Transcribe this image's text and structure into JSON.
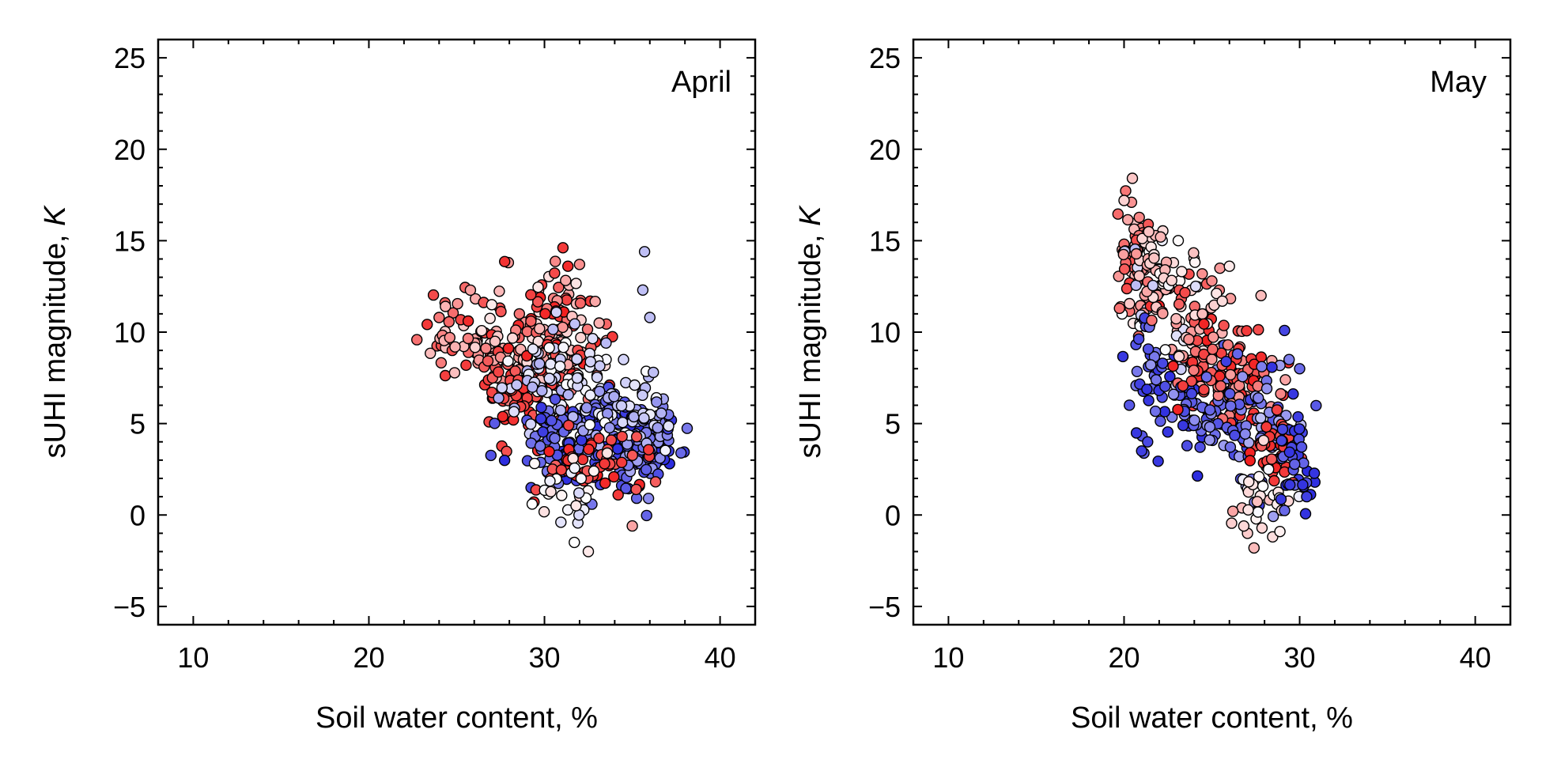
{
  "chart_data": [
    {
      "type": "scatter",
      "panel_label": "April",
      "xlabel": "Soil water content, %",
      "ylabel_main": "sUHI magnitude, ",
      "ylabel_italic": "K",
      "xlim": [
        8,
        42
      ],
      "ylim": [
        -6,
        26
      ],
      "xticks": [
        10,
        20,
        30,
        40
      ],
      "yticks": [
        -5,
        0,
        5,
        10,
        15,
        20,
        25
      ],
      "ytick_labels": [
        "−5",
        "0",
        "5",
        "10",
        "15",
        "20",
        "25"
      ],
      "grid": false,
      "colormap": [
        "#2b2bdf",
        "#ffffff",
        "#f21f1f"
      ],
      "clusters": [
        {
          "cx": 25.0,
          "cy": 9.5,
          "sx": 1.0,
          "sy": 1.2,
          "n": 40,
          "c": [
            0.6,
            0.95
          ]
        },
        {
          "cx": 27.5,
          "cy": 8.5,
          "sx": 1.3,
          "sy": 1.5,
          "n": 70,
          "c": [
            0.55,
            1.0
          ]
        },
        {
          "cx": 30.5,
          "cy": 9.5,
          "sx": 1.5,
          "sy": 2.0,
          "n": 130,
          "c": [
            0.55,
            1.0
          ]
        },
        {
          "cx": 29.0,
          "cy": 6.5,
          "sx": 1.4,
          "sy": 1.3,
          "n": 60,
          "c": [
            0.85,
            1.0
          ]
        },
        {
          "cx": 31.0,
          "cy": 7.0,
          "sx": 1.6,
          "sy": 1.6,
          "n": 80,
          "c": [
            0.3,
            0.5
          ]
        },
        {
          "cx": 32.0,
          "cy": 4.0,
          "sx": 2.0,
          "sy": 1.4,
          "n": 120,
          "c": [
            0.0,
            0.2
          ]
        },
        {
          "cx": 35.5,
          "cy": 4.0,
          "sx": 1.2,
          "sy": 1.2,
          "n": 110,
          "c": [
            0.0,
            0.3
          ]
        },
        {
          "cx": 34.0,
          "cy": 5.5,
          "sx": 1.5,
          "sy": 1.2,
          "n": 60,
          "c": [
            0.25,
            0.5
          ]
        },
        {
          "cx": 33.0,
          "cy": 3.0,
          "sx": 1.5,
          "sy": 1.0,
          "n": 50,
          "c": [
            0.85,
            1.0
          ]
        },
        {
          "cx": 31.5,
          "cy": 1.5,
          "sx": 1.0,
          "sy": 1.2,
          "n": 25,
          "c": [
            0.4,
            0.6
          ]
        }
      ],
      "extra_points": [
        [
          35.7,
          14.4,
          0.35
        ],
        [
          35.6,
          12.3,
          0.35
        ],
        [
          36.0,
          10.8,
          0.35
        ],
        [
          32.5,
          -2.0,
          0.55
        ],
        [
          31.7,
          -1.5,
          0.5
        ],
        [
          35.0,
          -0.6,
          0.7
        ],
        [
          32.0,
          13.7,
          0.75
        ],
        [
          27.0,
          11.5,
          0.55
        ],
        [
          24.0,
          10.8,
          0.8
        ],
        [
          29.3,
          0.6,
          0.5
        ],
        [
          36.2,
          7.8,
          0.35
        ],
        [
          34.5,
          8.5,
          0.4
        ]
      ]
    },
    {
      "type": "scatter",
      "panel_label": "May",
      "xlabel": "Soil water content, %",
      "ylabel_main": "sUHI magnitude, ",
      "ylabel_italic": "K",
      "xlim": [
        8,
        42
      ],
      "ylim": [
        -6,
        26
      ],
      "xticks": [
        10,
        20,
        30,
        40
      ],
      "yticks": [
        -5,
        0,
        5,
        10,
        15,
        20,
        25
      ],
      "ytick_labels": [
        "−5",
        "0",
        "5",
        "10",
        "15",
        "20",
        "25"
      ],
      "grid": false,
      "colormap": [
        "#2b2bdf",
        "#ffffff",
        "#f21f1f"
      ],
      "clusters": [
        {
          "cx": 20.5,
          "cy": 14.8,
          "sx": 0.5,
          "sy": 1.4,
          "n": 40,
          "c": [
            0.6,
            0.9
          ]
        },
        {
          "cx": 21.0,
          "cy": 12.0,
          "sx": 0.6,
          "sy": 1.5,
          "n": 40,
          "c": [
            0.3,
            1.0
          ]
        },
        {
          "cx": 22.0,
          "cy": 13.5,
          "sx": 0.8,
          "sy": 1.2,
          "n": 40,
          "c": [
            0.5,
            0.75
          ]
        },
        {
          "cx": 21.5,
          "cy": 8.0,
          "sx": 0.8,
          "sy": 2.0,
          "n": 35,
          "c": [
            0.0,
            0.2
          ]
        },
        {
          "cx": 23.5,
          "cy": 10.0,
          "sx": 1.0,
          "sy": 2.0,
          "n": 50,
          "c": [
            0.35,
            0.9
          ]
        },
        {
          "cx": 25.0,
          "cy": 9.0,
          "sx": 1.0,
          "sy": 2.0,
          "n": 70,
          "c": [
            0.55,
            1.0
          ]
        },
        {
          "cx": 24.5,
          "cy": 5.5,
          "sx": 1.3,
          "sy": 1.2,
          "n": 60,
          "c": [
            0.0,
            0.25
          ]
        },
        {
          "cx": 26.5,
          "cy": 7.0,
          "sx": 1.2,
          "sy": 1.5,
          "n": 80,
          "c": [
            0.7,
            1.0
          ]
        },
        {
          "cx": 27.5,
          "cy": 5.0,
          "sx": 1.2,
          "sy": 2.0,
          "n": 70,
          "c": [
            0.0,
            0.35
          ]
        },
        {
          "cx": 28.5,
          "cy": 3.5,
          "sx": 1.0,
          "sy": 1.0,
          "n": 40,
          "c": [
            0.85,
            1.0
          ]
        },
        {
          "cx": 27.5,
          "cy": 1.0,
          "sx": 0.8,
          "sy": 1.3,
          "n": 30,
          "c": [
            0.45,
            0.65
          ]
        },
        {
          "cx": 29.8,
          "cy": 3.0,
          "sx": 0.5,
          "sy": 1.5,
          "n": 35,
          "c": [
            0.0,
            0.15
          ]
        }
      ],
      "extra_points": [
        [
          20.0,
          17.2,
          0.6
        ],
        [
          27.4,
          -1.8,
          0.65
        ],
        [
          26.0,
          13.6,
          0.55
        ],
        [
          27.8,
          12.0,
          0.65
        ],
        [
          29.4,
          8.5,
          0.2
        ],
        [
          30.0,
          8.0,
          0.15
        ],
        [
          21.0,
          3.5,
          0.05
        ],
        [
          30.4,
          1.0,
          0.05
        ],
        [
          26.2,
          0.2,
          0.7
        ],
        [
          25.0,
          12.8,
          0.75
        ]
      ]
    }
  ]
}
